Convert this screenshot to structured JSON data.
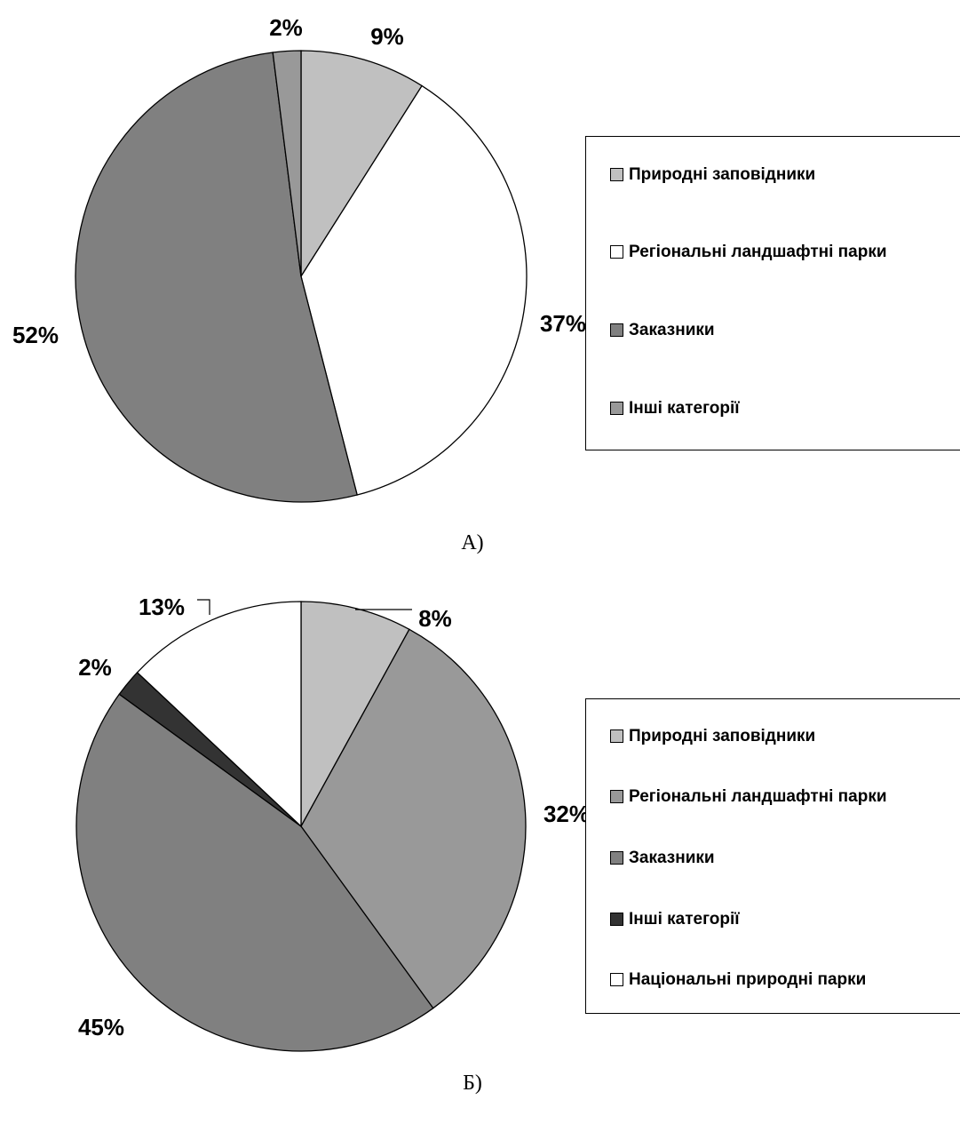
{
  "chart_data": [
    {
      "type": "pie",
      "caption": "А)",
      "categories": [
        "Природні заповідники",
        "Регіональні ландшафтні парки",
        "Заказники",
        "Інші категорії"
      ],
      "values": [
        9,
        37,
        52,
        2
      ],
      "value_labels": [
        "9%",
        "37%",
        "52%",
        "2%"
      ],
      "colors": [
        "#c0c0c0",
        "#ffffff",
        "#808080",
        "#999999"
      ],
      "legend_position": "right"
    },
    {
      "type": "pie",
      "caption": "Б)",
      "categories": [
        "Природні заповідники",
        "Регіональні ландшафтні парки",
        "Заказники",
        "Інші категорії",
        "Національні природні парки"
      ],
      "values": [
        8,
        32,
        45,
        2,
        13
      ],
      "value_labels": [
        "8%",
        "32%",
        "45%",
        "2%",
        "13%"
      ],
      "colors": [
        "#c0c0c0",
        "#999999",
        "#808080",
        "#333333",
        "#ffffff"
      ],
      "legend_position": "right"
    }
  ]
}
